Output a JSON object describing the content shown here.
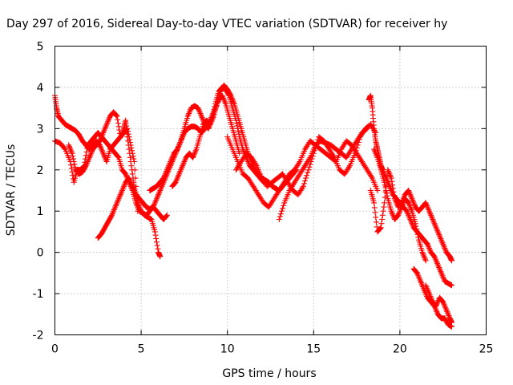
{
  "chart_data": {
    "type": "scatter",
    "title": "Day 297 of 2016, Sidereal Day-to-day VTEC variation (SDTVAR) for receiver hy",
    "xlabel": "GPS time / hours",
    "ylabel": "SDTVAR / TECUs",
    "xlim": [
      0,
      25
    ],
    "ylim": [
      -2,
      5
    ],
    "xticks": [
      "0",
      "5",
      "10",
      "15",
      "20",
      "25"
    ],
    "yticks": [
      "-2",
      "-1",
      "0",
      "1",
      "2",
      "3",
      "4",
      "5"
    ],
    "grid": true,
    "marker": "plus",
    "color": "#ff0000",
    "series": [
      {
        "x": [
          0.0,
          0.1,
          0.2,
          0.4,
          0.6,
          0.8,
          1.0,
          1.2,
          1.4,
          1.6,
          1.8,
          2.0,
          2.2,
          2.4,
          2.6,
          2.8,
          3.0,
          3.2,
          3.4,
          3.6,
          3.8,
          4.0,
          4.1,
          4.2,
          4.4,
          4.6,
          4.8,
          5.0,
          5.2,
          5.4,
          5.6,
          5.8,
          6.0,
          6.1
        ],
        "y": [
          3.8,
          3.5,
          3.3,
          3.2,
          3.1,
          3.05,
          3.0,
          2.95,
          2.85,
          2.7,
          2.6,
          2.5,
          2.6,
          2.7,
          2.6,
          2.4,
          2.2,
          2.5,
          2.6,
          2.7,
          2.8,
          3.0,
          3.2,
          2.8,
          2.2,
          1.6,
          1.2,
          1.0,
          0.9,
          0.85,
          0.8,
          0.5,
          0.0,
          -0.1
        ]
      },
      {
        "x": [
          0.0,
          0.3,
          0.6,
          0.9,
          1.1,
          1.3,
          1.5,
          1.7,
          1.9,
          2.1,
          2.3,
          2.5,
          2.7,
          2.9,
          3.1,
          3.3,
          3.5,
          3.7,
          3.9,
          4.1,
          4.3,
          4.5,
          4.7,
          4.9,
          5.1,
          5.3,
          5.5,
          5.7,
          5.9,
          6.1,
          6.3,
          6.5
        ],
        "y": [
          2.7,
          2.65,
          2.5,
          2.2,
          1.7,
          2.0,
          2.0,
          2.1,
          2.6,
          2.7,
          2.8,
          2.9,
          2.8,
          2.7,
          2.6,
          2.5,
          2.4,
          2.3,
          2.0,
          1.9,
          1.7,
          1.5,
          1.2,
          1.0,
          0.95,
          0.9,
          1.0,
          1.1,
          1.0,
          0.9,
          0.8,
          0.9
        ]
      },
      {
        "x": [
          0.8,
          1.0,
          1.2,
          1.4,
          1.6,
          1.8,
          2.0,
          2.2,
          2.4,
          2.6,
          2.8,
          3.0,
          3.2,
          3.4,
          3.6,
          3.8,
          4.0,
          4.2,
          4.4,
          4.6,
          4.8
        ],
        "y": [
          2.6,
          2.4,
          2.0,
          1.9,
          1.95,
          2.1,
          2.3,
          2.5,
          2.6,
          2.7,
          2.9,
          3.1,
          3.3,
          3.4,
          3.3,
          2.8,
          2.9,
          3.0,
          2.6,
          2.2,
          1.0
        ]
      },
      {
        "x": [
          2.5,
          2.7,
          2.9,
          3.1,
          3.3,
          3.5,
          3.7,
          3.9,
          4.1,
          4.3,
          4.5,
          4.7,
          4.9,
          5.1,
          5.3,
          5.5,
          5.7,
          5.9,
          6.1,
          6.3,
          6.5,
          6.7,
          6.9,
          7.1,
          7.3,
          7.5,
          7.7,
          7.9,
          8.1,
          8.3,
          8.5,
          8.7,
          8.9,
          9.1,
          9.3,
          9.5,
          9.7,
          9.9,
          10.1,
          10.3,
          10.5,
          10.7
        ],
        "y": [
          0.35,
          0.45,
          0.6,
          0.75,
          0.9,
          1.1,
          1.3,
          1.5,
          1.7,
          1.8,
          1.6,
          1.4,
          1.3,
          1.2,
          1.1,
          1.05,
          1.1,
          1.3,
          1.5,
          1.7,
          1.9,
          2.1,
          2.3,
          2.5,
          2.7,
          2.9,
          3.0,
          3.05,
          3.05,
          3.0,
          2.9,
          3.0,
          3.1,
          3.3,
          3.5,
          3.7,
          3.8,
          3.6,
          3.3,
          3.0,
          2.7,
          2.4
        ]
      },
      {
        "x": [
          5.5,
          5.7,
          5.9,
          6.1,
          6.3,
          6.5,
          6.7,
          6.9,
          7.1,
          7.3,
          7.5,
          7.7,
          7.9,
          8.1,
          8.3,
          8.5,
          8.7,
          8.9,
          9.1,
          9.3,
          9.5,
          9.7,
          9.9,
          10.1,
          10.3,
          10.5,
          10.7,
          10.9,
          11.1,
          11.3,
          11.5,
          11.7,
          11.9,
          12.1
        ],
        "y": [
          1.5,
          1.55,
          1.6,
          1.7,
          1.8,
          2.0,
          2.2,
          2.4,
          2.5,
          2.7,
          3.0,
          3.3,
          3.5,
          3.55,
          3.5,
          3.3,
          3.1,
          3.0,
          3.2,
          3.6,
          3.9,
          4.0,
          3.95,
          3.8,
          3.5,
          3.2,
          2.8,
          2.5,
          2.3,
          2.1,
          2.0,
          1.9,
          1.8,
          1.7
        ]
      },
      {
        "x": [
          6.8,
          7.0,
          7.2,
          7.4,
          7.6,
          7.8,
          8.0,
          8.2,
          8.4,
          8.6,
          8.8,
          9.0,
          9.2,
          9.4,
          9.6,
          9.8,
          10.0,
          10.2,
          10.4,
          10.6,
          10.8,
          11.0,
          11.2,
          11.4,
          11.6,
          11.8,
          12.0,
          12.2,
          12.4,
          12.6,
          12.8,
          13.0,
          13.2,
          13.4,
          13.6,
          13.8,
          14.0
        ],
        "y": [
          1.6,
          1.7,
          1.9,
          2.1,
          2.3,
          2.4,
          2.3,
          2.5,
          2.8,
          3.1,
          3.2,
          3.1,
          3.3,
          3.6,
          3.9,
          4.05,
          3.95,
          3.8,
          3.6,
          3.3,
          3.0,
          2.7,
          2.4,
          2.2,
          2.0,
          1.9,
          1.8,
          1.75,
          1.7,
          1.6,
          1.55,
          1.5,
          1.6,
          1.7,
          1.8,
          1.9,
          2.0
        ]
      },
      {
        "x": [
          10.0,
          10.3,
          10.6,
          10.9,
          11.2,
          11.5,
          11.8,
          12.1,
          12.4,
          12.7,
          13.0,
          13.3,
          13.6,
          13.9,
          14.2,
          14.5,
          14.8,
          15.1,
          15.4,
          15.7,
          16.0,
          16.3,
          16.6,
          16.9,
          17.2,
          17.5,
          17.8,
          18.1,
          18.4,
          18.7
        ],
        "y": [
          2.8,
          2.5,
          2.2,
          1.9,
          1.8,
          1.6,
          1.4,
          1.2,
          1.1,
          1.3,
          1.5,
          1.7,
          1.9,
          2.0,
          2.2,
          2.5,
          2.7,
          2.6,
          2.5,
          2.4,
          2.3,
          2.2,
          2.5,
          2.7,
          2.6,
          2.4,
          2.2,
          2.0,
          1.8,
          1.5
        ]
      },
      {
        "x": [
          10.5,
          10.8,
          11.1,
          11.4,
          11.7,
          12.0,
          12.3,
          12.6,
          12.9,
          13.2,
          13.5,
          13.8,
          14.1,
          14.4,
          14.7,
          15.0,
          15.3,
          15.6,
          15.9,
          16.2,
          16.5,
          16.8,
          17.1,
          17.4,
          17.7,
          18.0,
          18.3,
          18.6
        ],
        "y": [
          2.0,
          2.2,
          2.4,
          2.3,
          2.1,
          1.8,
          1.6,
          1.7,
          1.8,
          1.9,
          1.7,
          1.5,
          1.4,
          1.6,
          2.0,
          2.4,
          2.8,
          2.7,
          2.5,
          2.3,
          2.0,
          1.9,
          2.1,
          2.4,
          2.8,
          3.0,
          3.1,
          2.9
        ]
      },
      {
        "x": [
          13.0,
          13.3,
          13.6,
          13.9,
          14.2,
          14.5,
          14.8,
          15.1,
          15.4,
          15.7,
          16.0,
          16.3,
          16.6,
          16.9,
          17.2,
          17.5,
          17.8,
          18.1
        ],
        "y": [
          0.8,
          1.2,
          1.5,
          1.7,
          1.9,
          2.1,
          2.3,
          2.6,
          2.7,
          2.65,
          2.6,
          2.5,
          2.4,
          2.3,
          2.5,
          2.7,
          2.9,
          3.0
        ]
      },
      {
        "x": [
          18.2,
          18.3,
          18.4,
          18.5,
          18.6,
          18.7,
          18.8,
          18.9,
          19.0,
          19.2,
          19.4,
          19.6,
          19.8,
          20.0,
          20.2,
          20.4,
          20.6,
          20.8,
          21.0,
          21.2,
          21.4,
          21.6,
          21.8,
          22.0,
          22.2,
          22.4,
          22.6,
          22.8,
          23.0
        ],
        "y": [
          3.7,
          3.8,
          3.5,
          3.0,
          2.7,
          2.5,
          2.3,
          2.1,
          2.0,
          1.8,
          1.6,
          1.4,
          1.3,
          1.2,
          1.1,
          1.0,
          0.8,
          0.6,
          0.5,
          0.4,
          0.3,
          0.2,
          0.0,
          -0.1,
          -0.3,
          -0.5,
          -0.7,
          -0.75,
          -0.8
        ]
      },
      {
        "x": [
          18.3,
          18.5,
          18.7,
          18.9,
          19.1,
          19.3,
          19.5,
          19.7,
          19.9,
          20.1,
          20.3,
          20.5,
          20.7,
          20.9,
          21.1,
          21.3,
          21.5,
          21.7,
          21.9,
          22.1,
          22.3,
          22.5,
          22.7,
          22.9,
          23.0
        ],
        "y": [
          1.5,
          1.2,
          0.5,
          0.6,
          1.2,
          2.0,
          1.8,
          1.3,
          1.1,
          1.2,
          1.4,
          1.5,
          1.3,
          1.1,
          1.0,
          1.1,
          1.2,
          1.0,
          0.8,
          0.6,
          0.4,
          0.2,
          0.0,
          -0.1,
          -0.2
        ]
      },
      {
        "x": [
          18.5,
          18.7,
          18.9,
          19.1,
          19.3,
          19.5,
          19.7,
          19.9,
          20.1,
          20.3,
          20.5,
          20.7,
          20.9,
          21.1,
          21.3,
          21.5
        ],
        "y": [
          2.5,
          2.3,
          2.0,
          1.7,
          1.3,
          1.0,
          0.8,
          0.9,
          1.1,
          1.3,
          1.2,
          1.0,
          0.7,
          0.3,
          0.0,
          -0.2
        ]
      },
      {
        "x": [
          20.8,
          21.0,
          21.2,
          21.4,
          21.6,
          21.8,
          22.0,
          22.2,
          22.4,
          22.6,
          22.8,
          23.0
        ],
        "y": [
          -0.4,
          -0.5,
          -0.7,
          -0.9,
          -1.1,
          -1.2,
          -1.3,
          -1.5,
          -1.6,
          -1.6,
          -1.75,
          -1.8
        ]
      },
      {
        "x": [
          21.5,
          21.7,
          21.9,
          22.1,
          22.3,
          22.5,
          22.7,
          22.9,
          23.0
        ],
        "y": [
          -0.8,
          -1.0,
          -1.2,
          -1.3,
          -1.1,
          -1.2,
          -1.4,
          -1.6,
          -1.7
        ]
      }
    ]
  }
}
